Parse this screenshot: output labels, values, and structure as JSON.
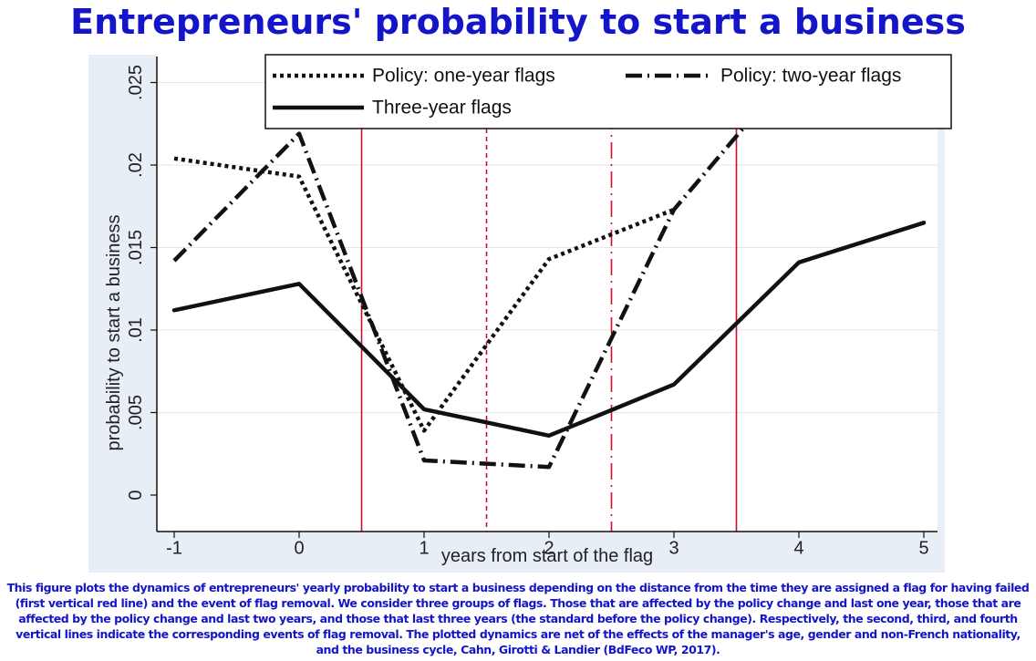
{
  "title": "Entrepreneurs' probability to start a business",
  "caption": "This figure plots the dynamics of entrepreneurs' yearly probability to start a business depending on the distance from the time they are assigned a flag for having failed (first vertical red line) and the event of flag removal. We consider three groups of flags. Those that are affected by the policy change and last one year, those that are affected by the policy change and last two years, and those that last three years (the standard before the policy change). Respectively, the second, third, and fourth vertical lines indicate the corresponding events of flag removal. The plotted dynamics are net of the effects of the manager's age, gender and non-French nationality, and the business cycle, Cahn, Girotti & Landier (BdFeco WP, 2017).",
  "chart_data": {
    "type": "line",
    "xlabel": "years from start of the flag",
    "ylabel": "probability to start a business",
    "xlim": [
      -1.1,
      5.25
    ],
    "ylim": [
      -0.0005,
      0.0262
    ],
    "xticks": [
      -1,
      0,
      1,
      2,
      3,
      4,
      5
    ],
    "xtick_labels": [
      "-1",
      "0",
      "1",
      "2",
      "3",
      "4",
      "5"
    ],
    "yticks": [
      0,
      0.005,
      0.01,
      0.015,
      0.02,
      0.025
    ],
    "ytick_labels": [
      "0",
      ".005",
      ".01",
      ".015",
      ".02",
      ".025"
    ],
    "grid": true,
    "legend_position": "top",
    "vertical_lines": [
      {
        "x": 0.5,
        "style": "solid",
        "color": "#c8102e"
      },
      {
        "x": 1.5,
        "style": "dashed",
        "color": "#c8102e"
      },
      {
        "x": 2.5,
        "style": "dashdot",
        "color": "#c8102e"
      },
      {
        "x": 3.5,
        "style": "solid",
        "color": "#c8102e"
      }
    ],
    "series": [
      {
        "name": "Policy: one-year flags",
        "style": "dotted",
        "color": "#111111",
        "x": [
          -1,
          0,
          1,
          2,
          3
        ],
        "values": [
          0.0204,
          0.0193,
          0.0039,
          0.0143,
          0.0173
        ]
      },
      {
        "name": "Policy: two-year flags",
        "style": "dashdot",
        "color": "#111111",
        "x": [
          -1,
          0,
          1,
          2,
          3,
          4
        ],
        "values": [
          0.0142,
          0.0219,
          0.0021,
          0.0017,
          0.0173,
          0.0262
        ]
      },
      {
        "name": "Three-year flags",
        "style": "solid",
        "color": "#111111",
        "x": [
          -1,
          0,
          1,
          2,
          3,
          4,
          5
        ],
        "values": [
          0.0112,
          0.0128,
          0.0052,
          0.0036,
          0.0067,
          0.0141,
          0.0165
        ]
      }
    ]
  }
}
